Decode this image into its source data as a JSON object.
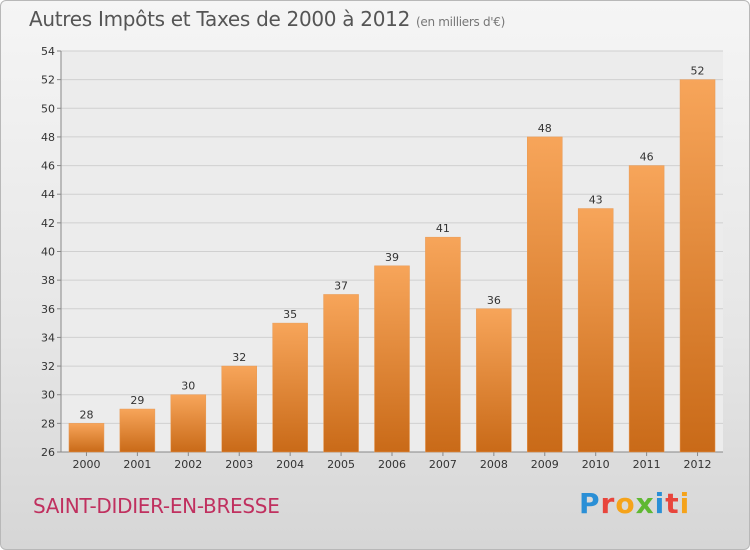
{
  "header": {
    "title": "Autres Impôts et Taxes de 2000 à 2012",
    "unit": "(en milliers d'€)"
  },
  "footer": {
    "commune": "SAINT-DIDIER-EN-BRESSE",
    "logo_letters": [
      "P",
      "r",
      "o",
      "x",
      "i",
      "t",
      "i"
    ]
  },
  "colors": {
    "bar_top": "#f7a55a",
    "bar_bottom": "#c96a18",
    "grid": "#d0d0d0",
    "commune": "#c0305f"
  },
  "chart_data": {
    "type": "bar",
    "title": "Autres Impôts et Taxes de 2000 à 2012",
    "xlabel": "",
    "ylabel": "",
    "categories": [
      "2000",
      "2001",
      "2002",
      "2003",
      "2004",
      "2005",
      "2006",
      "2007",
      "2008",
      "2009",
      "2010",
      "2011",
      "2012"
    ],
    "values": [
      28,
      29,
      30,
      32,
      35,
      37,
      39,
      41,
      36,
      48,
      43,
      46,
      52
    ],
    "ylim": [
      26,
      54
    ],
    "yticks": [
      26,
      28,
      30,
      32,
      34,
      36,
      38,
      40,
      42,
      44,
      46,
      48,
      50,
      52,
      54
    ],
    "grid": true,
    "data_labels": true
  }
}
